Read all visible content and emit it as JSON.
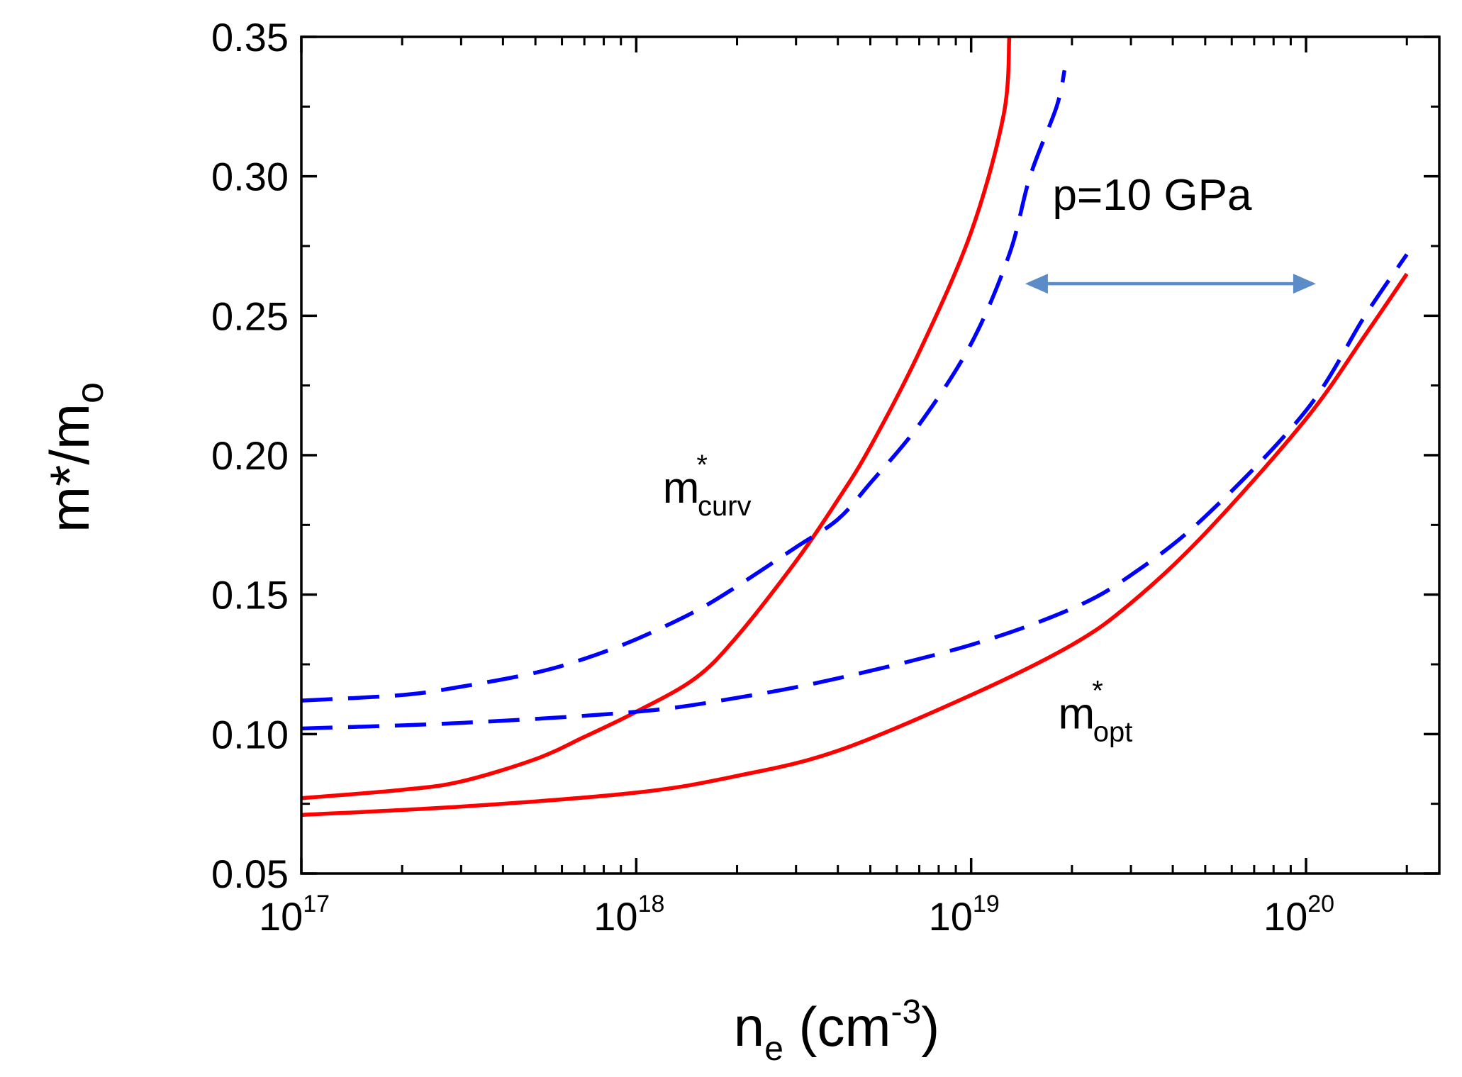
{
  "chart_data": {
    "type": "line",
    "title": "",
    "xlabel": {
      "base": "n",
      "sub": "e",
      "text": " (cm",
      "sup": "-3",
      "close": ")"
    },
    "ylabel": {
      "text": "m*/m",
      "sub": "o"
    },
    "xscale": "log",
    "xlim": [
      1e+17,
      2.5e+20
    ],
    "ylim": [
      0.05,
      0.35
    ],
    "xticks": [
      {
        "value": 1e+17,
        "base": "10",
        "exp": "17"
      },
      {
        "value": 1e+18,
        "base": "10",
        "exp": "18"
      },
      {
        "value": 1e+19,
        "base": "10",
        "exp": "19"
      },
      {
        "value": 1e+20,
        "base": "10",
        "exp": "20"
      }
    ],
    "yticks": [
      {
        "value": 0.05,
        "label": "0.05"
      },
      {
        "value": 0.1,
        "label": "0.10"
      },
      {
        "value": 0.15,
        "label": "0.15"
      },
      {
        "value": 0.2,
        "label": "0.20"
      },
      {
        "value": 0.25,
        "label": "0.25"
      },
      {
        "value": 0.3,
        "label": "0.30"
      },
      {
        "value": 0.35,
        "label": "0.35"
      }
    ],
    "series": [
      {
        "name": "m*curv solid",
        "style": "solid",
        "color": "#ff0000",
        "x": [
          1e+17,
          2e+17,
          3e+17,
          5e+17,
          7e+17,
          1e+18,
          1.5e+18,
          2e+18,
          3e+18,
          4e+18,
          5e+18,
          7e+18,
          1e+19,
          1.25e+19,
          1.3e+19
        ],
        "y": [
          0.077,
          0.08,
          0.083,
          0.091,
          0.099,
          0.108,
          0.12,
          0.135,
          0.162,
          0.184,
          0.203,
          0.237,
          0.28,
          0.322,
          0.35
        ]
      },
      {
        "name": "m*curv dashed",
        "style": "dashed",
        "color": "#0000ff",
        "x": [
          1e+17,
          2e+17,
          3e+17,
          5e+17,
          7e+17,
          1e+18,
          1.5e+18,
          2e+18,
          3e+18,
          4e+18,
          5e+18,
          7e+18,
          1e+19,
          1.3e+19,
          1.5e+19,
          1.8e+19,
          1.9e+19
        ],
        "y": [
          0.112,
          0.114,
          0.117,
          0.122,
          0.127,
          0.134,
          0.144,
          0.153,
          0.167,
          0.177,
          0.19,
          0.211,
          0.24,
          0.272,
          0.3,
          0.325,
          0.338
        ]
      },
      {
        "name": "m*opt solid",
        "style": "solid",
        "color": "#ff0000",
        "x": [
          1e+17,
          3e+17,
          1e+18,
          2e+18,
          4e+18,
          1e+19,
          2e+19,
          3e+19,
          5e+19,
          1e+20,
          1.5e+20,
          2e+20
        ],
        "y": [
          0.071,
          0.074,
          0.079,
          0.085,
          0.094,
          0.114,
          0.132,
          0.147,
          0.172,
          0.213,
          0.243,
          0.265
        ]
      },
      {
        "name": "m*opt dashed",
        "style": "dashed",
        "color": "#0000ff",
        "x": [
          1e+17,
          3e+17,
          1e+18,
          2e+18,
          4e+18,
          1e+19,
          2e+19,
          3e+19,
          5e+19,
          1e+20,
          1.5e+20,
          2e+20
        ],
        "y": [
          0.102,
          0.104,
          0.108,
          0.113,
          0.12,
          0.132,
          0.145,
          0.157,
          0.178,
          0.216,
          0.25,
          0.272
        ]
      }
    ],
    "annotations": [
      {
        "id": "curv",
        "base": "m",
        "sup": "*",
        "sub": "curv",
        "x": 1.2e+18,
        "y": 0.183
      },
      {
        "id": "opt",
        "base": "m",
        "sup": "*",
        "sub": "opt",
        "x": 1.82e+19,
        "y": 0.102
      },
      {
        "id": "pressure",
        "text": "p=10 GPa",
        "x": 1.75e+19,
        "y": 0.288
      }
    ],
    "arrow": {
      "from_x": 1.45e+19,
      "to_x": 1.07e+20,
      "y": 0.2615,
      "color": "#5b8cc8",
      "style": "double-headed"
    }
  }
}
